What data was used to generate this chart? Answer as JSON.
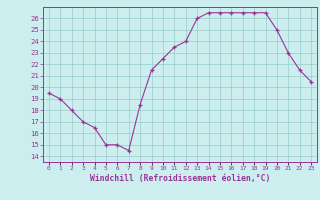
{
  "x": [
    0,
    1,
    2,
    3,
    4,
    5,
    6,
    7,
    8,
    9,
    10,
    11,
    12,
    13,
    14,
    15,
    16,
    17,
    18,
    19,
    20,
    21,
    22,
    23
  ],
  "y": [
    19.5,
    19.0,
    18.0,
    17.0,
    16.5,
    15.0,
    15.0,
    14.5,
    18.5,
    21.5,
    22.5,
    23.5,
    24.0,
    26.0,
    26.5,
    26.5,
    26.5,
    26.5,
    26.5,
    26.5,
    25.0,
    23.0,
    21.5,
    20.5
  ],
  "xlim": [
    -0.5,
    23.5
  ],
  "ylim": [
    13.5,
    27.0
  ],
  "yticks": [
    14,
    15,
    16,
    17,
    18,
    19,
    20,
    21,
    22,
    23,
    24,
    25,
    26
  ],
  "xtick_labels": [
    "0",
    "1",
    "2",
    "3",
    "4",
    "5",
    "6",
    "7",
    "8",
    "9",
    "10",
    "11",
    "12",
    "13",
    "14",
    "15",
    "16",
    "17",
    "18",
    "19",
    "20",
    "21",
    "22",
    "23"
  ],
  "xlabel": "Windchill (Refroidissement éolien,°C)",
  "line_color": "#993399",
  "marker": "+",
  "bg_color": "#cceeee",
  "grid_color": "#99cccc",
  "tick_color": "#993399",
  "label_color": "#993399",
  "axis_color": "#993399"
}
